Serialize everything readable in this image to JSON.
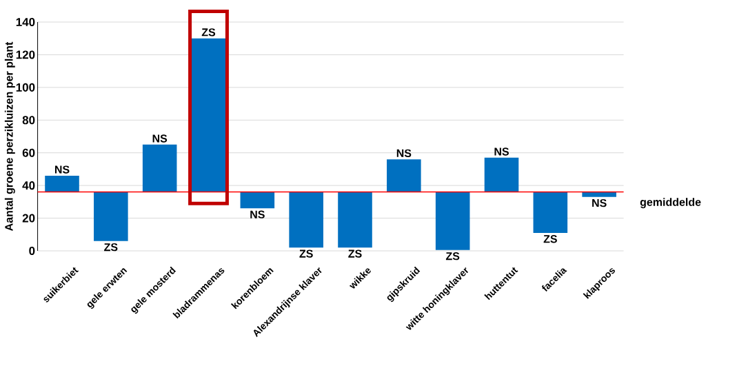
{
  "chart_data": {
    "type": "bar",
    "ylabel": "Aantal groene perzikluizen per plant",
    "categories": [
      "suikerbiet",
      "gele erwten",
      "gele mosterd",
      "bladrammenas",
      "korenbloem",
      "Alexandrijnse klaver",
      "wikke",
      "gipskruid",
      "witte honingklaver",
      "huttentut",
      "facelia",
      "klaproos"
    ],
    "base": [
      36,
      36,
      36,
      36,
      36,
      36,
      36,
      36,
      36,
      36,
      36,
      36
    ],
    "values": [
      10,
      -30,
      29,
      94,
      -10,
      -34,
      -34,
      20,
      -35.5,
      21,
      -25,
      -3
    ],
    "value_labels": [
      "NS",
      "ZS",
      "NS",
      "ZS",
      "NS",
      "ZS",
      "ZS",
      "NS",
      "ZS",
      "NS",
      "ZS",
      "NS"
    ],
    "color": "#0070c0",
    "ylim": [
      0,
      140
    ],
    "yticks": [
      0,
      20,
      40,
      60,
      80,
      100,
      120,
      140
    ],
    "grid": "y",
    "ref_lines": [
      {
        "axis": "y",
        "value": 36,
        "label": "gemiddelde",
        "color": "#ff0000"
      }
    ]
  }
}
